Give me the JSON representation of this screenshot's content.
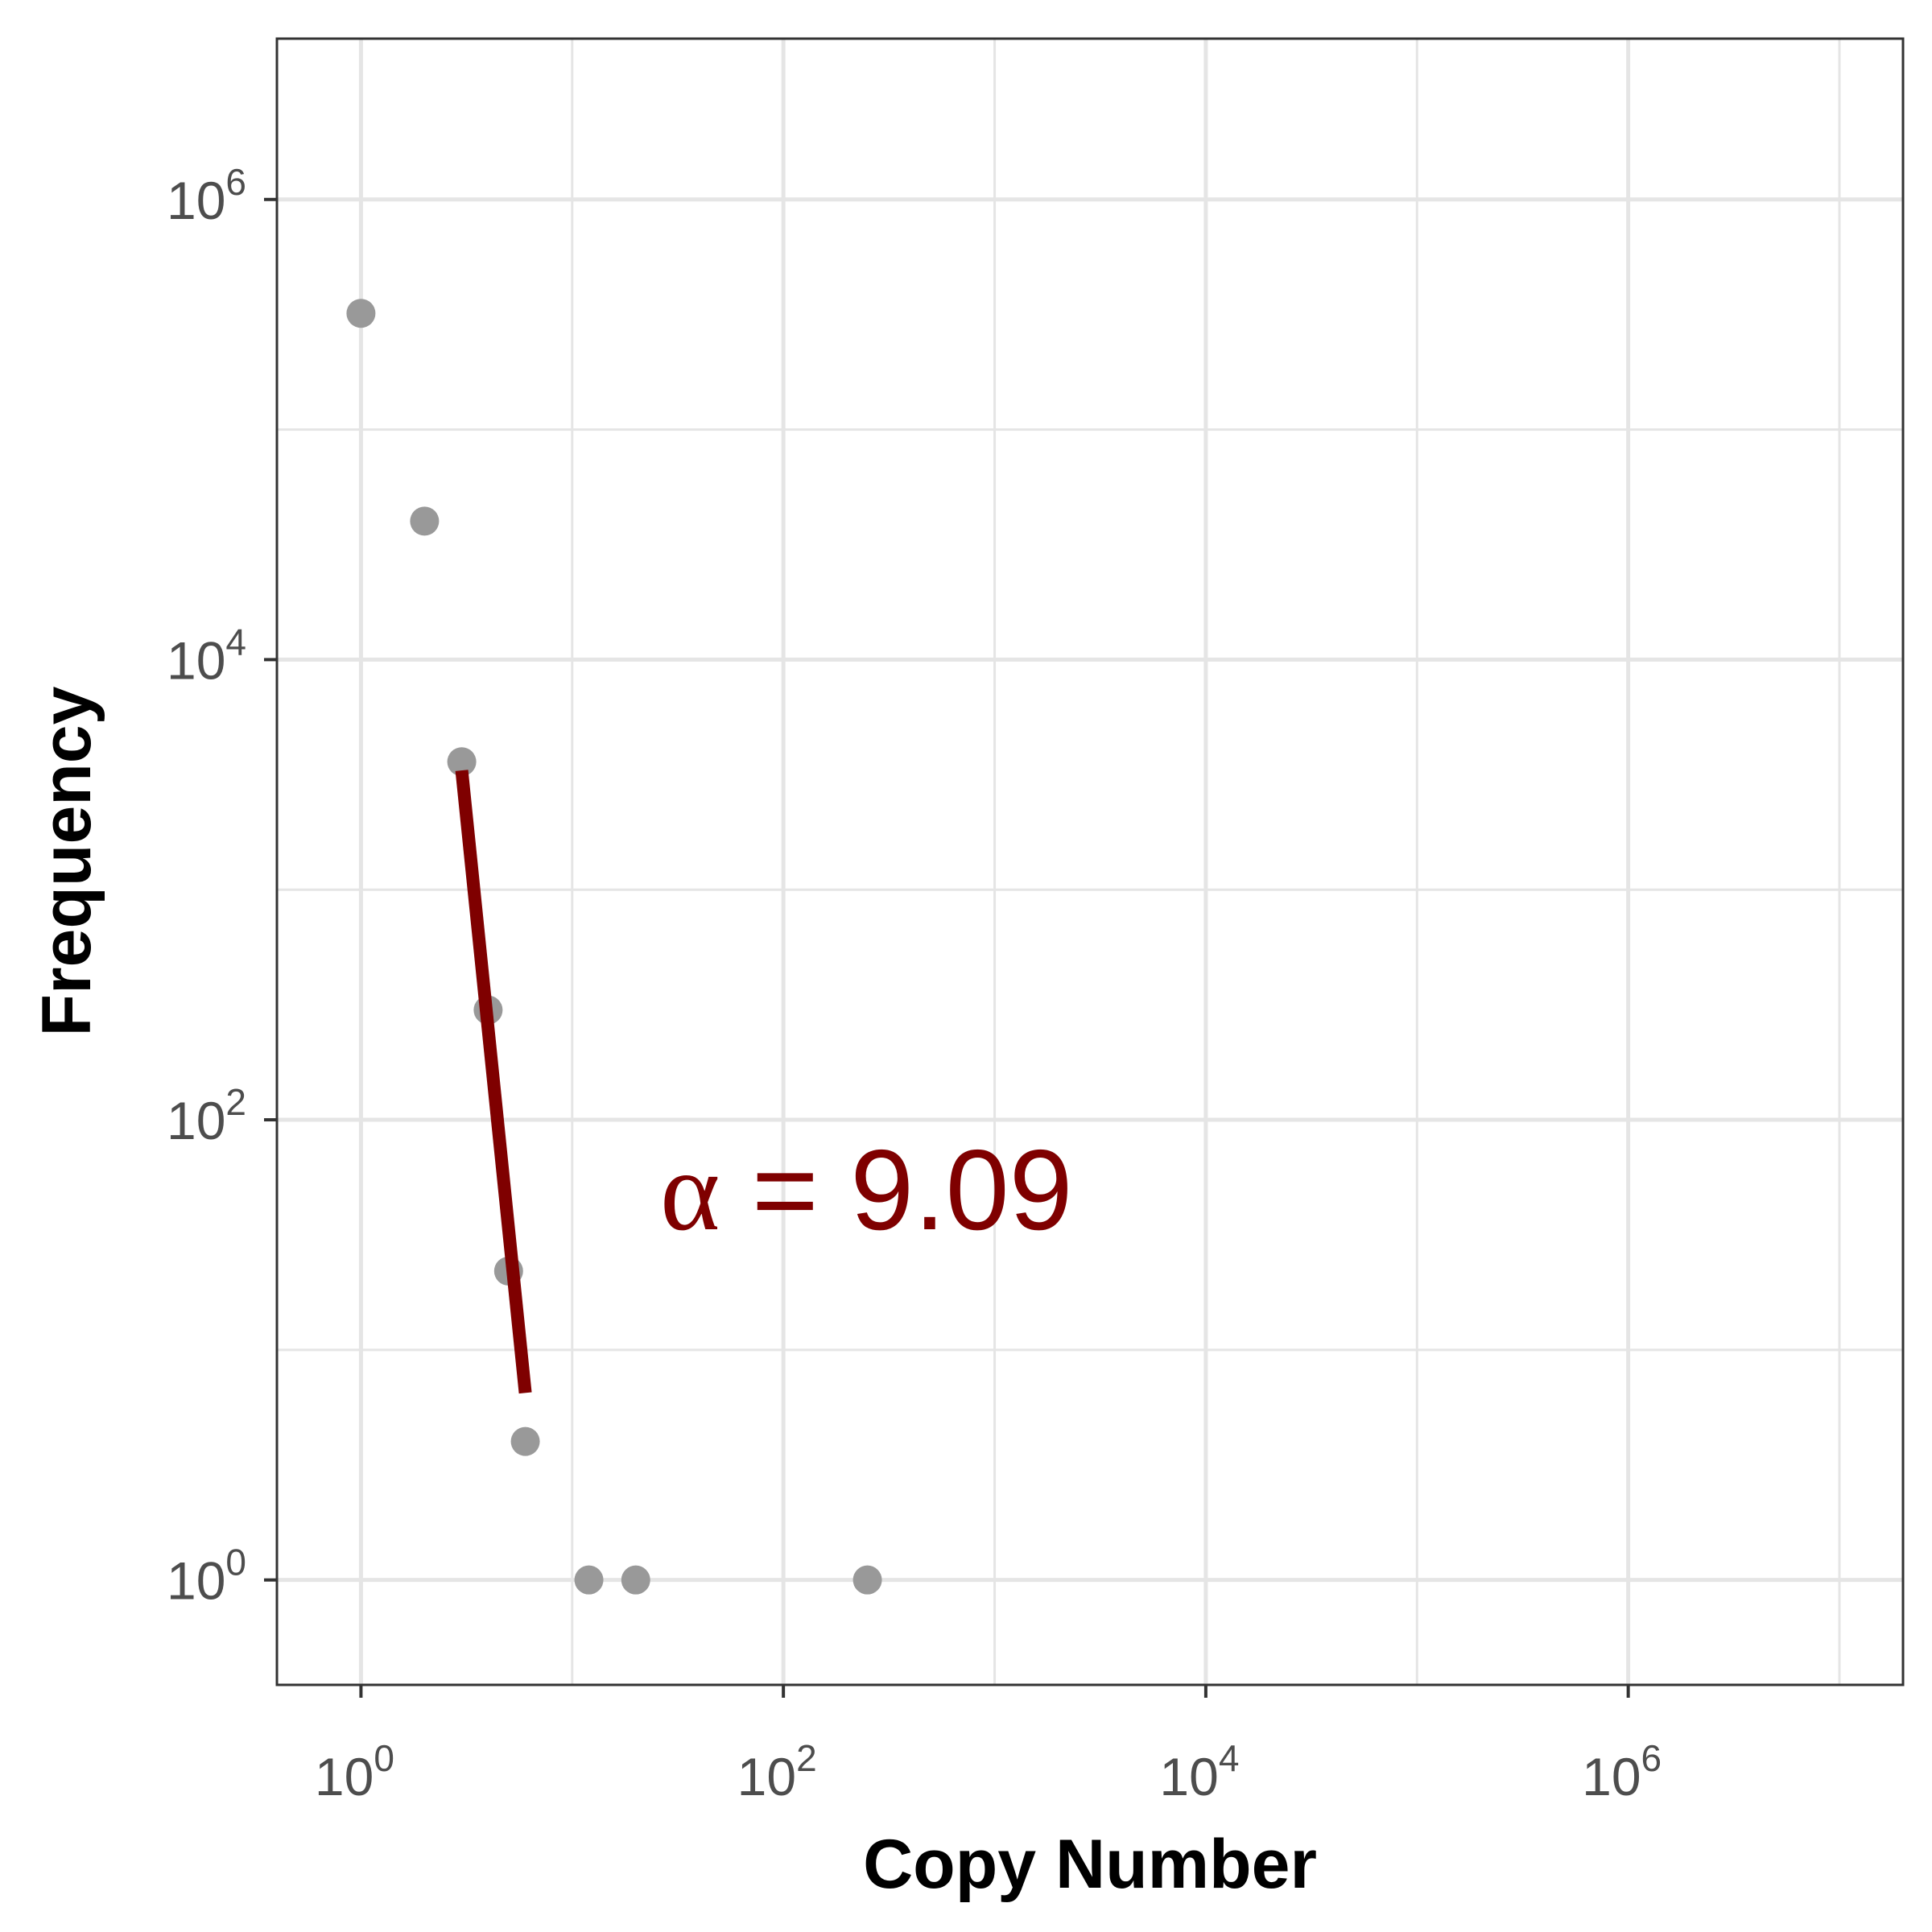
{
  "chart_data": {
    "type": "scatter",
    "x_scale": "log10",
    "y_scale": "log10",
    "xlabel": "Copy Number",
    "ylabel": "Frequency",
    "xlim": [
      0.4,
      20000000
    ],
    "ylim": [
      0.35,
      5000000
    ],
    "grid": true,
    "x_ticks": [
      {
        "base": "10",
        "exp": "0",
        "value": 1
      },
      {
        "base": "10",
        "exp": "2",
        "value": 100
      },
      {
        "base": "10",
        "exp": "4",
        "value": 10000
      },
      {
        "base": "10",
        "exp": "6",
        "value": 1000000
      }
    ],
    "y_ticks": [
      {
        "base": "10",
        "exp": "0",
        "value": 1
      },
      {
        "base": "10",
        "exp": "2",
        "value": 100
      },
      {
        "base": "10",
        "exp": "4",
        "value": 10000
      },
      {
        "base": "10",
        "exp": "6",
        "value": 1000000
      }
    ],
    "points": [
      {
        "x": 1,
        "y": 320000
      },
      {
        "x": 2,
        "y": 40000
      },
      {
        "x": 3,
        "y": 3600
      },
      {
        "x": 4,
        "y": 300
      },
      {
        "x": 5,
        "y": 22
      },
      {
        "x": 6,
        "y": 4
      },
      {
        "x": 12,
        "y": 1
      },
      {
        "x": 20,
        "y": 1
      },
      {
        "x": 250,
        "y": 1
      }
    ],
    "point_color": "#999999",
    "fit_line": {
      "x": [
        3,
        6
      ],
      "y": [
        3300,
        6.5
      ],
      "color": "#7f0000"
    },
    "annotation": {
      "symbol": "α",
      "text": " = 9.09",
      "color": "#7f0000",
      "x": 25,
      "y": 60
    }
  }
}
